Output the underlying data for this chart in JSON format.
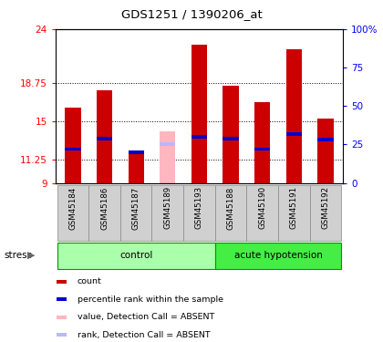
{
  "title": "GDS1251 / 1390206_at",
  "samples": [
    "GSM45184",
    "GSM45186",
    "GSM45187",
    "GSM45189",
    "GSM45193",
    "GSM45188",
    "GSM45190",
    "GSM45191",
    "GSM45192"
  ],
  "bar_values": [
    16.3,
    18.0,
    11.8,
    14.0,
    22.5,
    18.5,
    16.9,
    22.0,
    15.3
  ],
  "rank_values": [
    12.3,
    13.3,
    12.0,
    12.8,
    13.5,
    13.3,
    12.3,
    13.8,
    13.2
  ],
  "absent": [
    false,
    false,
    false,
    true,
    false,
    false,
    false,
    false,
    false
  ],
  "control_count": 5,
  "ymin": 9,
  "ymax": 24,
  "yticks": [
    9,
    11.25,
    15,
    18.75,
    24
  ],
  "ytick_labels": [
    "9",
    "11.25",
    "15",
    "18.75",
    "24"
  ],
  "right_yticks": [
    0,
    25,
    50,
    75,
    100
  ],
  "right_ytick_labels": [
    "0",
    "25",
    "50",
    "75",
    "100%"
  ],
  "bar_color": "#cc0000",
  "rank_color": "#0000cc",
  "absent_bar_color": "#ffb6c1",
  "absent_rank_color": "#b8b8ff",
  "control_color": "#aaffaa",
  "hypotension_color": "#44ee44",
  "xlabel_bg": "#d0d0d0",
  "bar_width": 0.5
}
